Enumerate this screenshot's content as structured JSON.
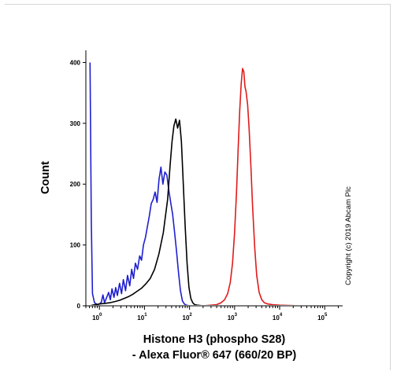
{
  "chart_data": {
    "type": "line",
    "title": "",
    "xlabel_line1": "Histone H3 (phospho S28)",
    "xlabel_line2": "- Alexa Fluor® 647 (660/20 BP)",
    "ylabel": "Count",
    "x_scale": "log",
    "xlim": [
      0.5,
      250000
    ],
    "ylim": [
      0,
      420
    ],
    "x_ticks": [
      {
        "value": 1,
        "base": "10",
        "exp": "0"
      },
      {
        "value": 10,
        "base": "10",
        "exp": "1"
      },
      {
        "value": 100,
        "base": "10",
        "exp": "2"
      },
      {
        "value": 1000,
        "base": "10",
        "exp": "3"
      },
      {
        "value": 10000,
        "base": "10",
        "exp": "4"
      },
      {
        "value": 100000,
        "base": "10",
        "exp": "5"
      }
    ],
    "y_ticks": [
      0,
      100,
      200,
      300,
      400
    ],
    "grid": false,
    "legend": "none",
    "copyright": "Copyright (c) 2019 Abcam Plc",
    "series": [
      {
        "color": "#1f1fd0",
        "x": [
          0.62,
          0.66,
          0.7,
          0.78,
          0.9,
          1.0,
          1.1,
          1.2,
          1.3,
          1.45,
          1.6,
          1.75,
          1.9,
          2.1,
          2.3,
          2.5,
          2.8,
          3.1,
          3.4,
          3.8,
          4.2,
          4.7,
          5.2,
          5.7,
          6.3,
          7.0,
          7.8,
          8.6,
          9.5,
          10.5,
          11.6,
          12.8,
          14.1,
          15.6,
          17.2,
          19.0,
          21.0,
          23.2,
          25.6,
          28.3,
          31.3,
          34.6,
          38.2,
          42.2,
          46.6,
          51.5,
          56.9,
          62.9,
          69.5,
          76.8,
          85,
          100,
          200,
          1000,
          10000,
          100000,
          200000
        ],
        "y": [
          400,
          140,
          20,
          5,
          2,
          3,
          6,
          18,
          5,
          14,
          22,
          10,
          28,
          14,
          30,
          17,
          37,
          20,
          43,
          25,
          50,
          33,
          60,
          45,
          70,
          60,
          82,
          75,
          100,
          112,
          130,
          148,
          168,
          175,
          187,
          170,
          208,
          228,
          200,
          220,
          215,
          190,
          170,
          150,
          120,
          90,
          55,
          25,
          8,
          3,
          1,
          0,
          0,
          0,
          0,
          0,
          0
        ]
      },
      {
        "color": "#000000",
        "x": [
          0.62,
          0.7,
          0.8,
          1.0,
          1.3,
          1.7,
          2.2,
          2.8,
          3.5,
          4.4,
          5.5,
          6.9,
          8.6,
          10.7,
          13.4,
          16.7,
          20.9,
          26.1,
          32.6,
          37.0,
          40.8,
          45.0,
          49.5,
          54.5,
          60,
          66,
          72.7,
          80,
          88,
          97,
          107,
          118,
          130,
          150,
          200,
          1000,
          10000,
          100000,
          200000
        ],
        "y": [
          0,
          1,
          2,
          3,
          4,
          5,
          7,
          9,
          12,
          15,
          19,
          24,
          29,
          36,
          45,
          60,
          85,
          120,
          175,
          230,
          270,
          296,
          307,
          292,
          305,
          270,
          200,
          130,
          70,
          30,
          12,
          5,
          2,
          1,
          0,
          0,
          0,
          0,
          0
        ]
      },
      {
        "color": "#e01b1b",
        "x": [
          0.62,
          100,
          200,
          300,
          400,
          500,
          600,
          700,
          800,
          900,
          1000,
          1100,
          1200,
          1300,
          1400,
          1500,
          1600,
          1700,
          1800,
          1950,
          2100,
          2300,
          2500,
          2800,
          3100,
          3500,
          4000,
          4600,
          5500,
          7000,
          10000,
          30000,
          100000,
          200000
        ],
        "y": [
          0,
          0,
          0,
          1,
          2,
          5,
          10,
          20,
          38,
          70,
          120,
          185,
          260,
          320,
          365,
          390,
          385,
          360,
          352,
          330,
          290,
          230,
          165,
          95,
          50,
          22,
          10,
          5,
          3,
          2,
          1,
          0,
          0,
          0
        ]
      }
    ]
  }
}
